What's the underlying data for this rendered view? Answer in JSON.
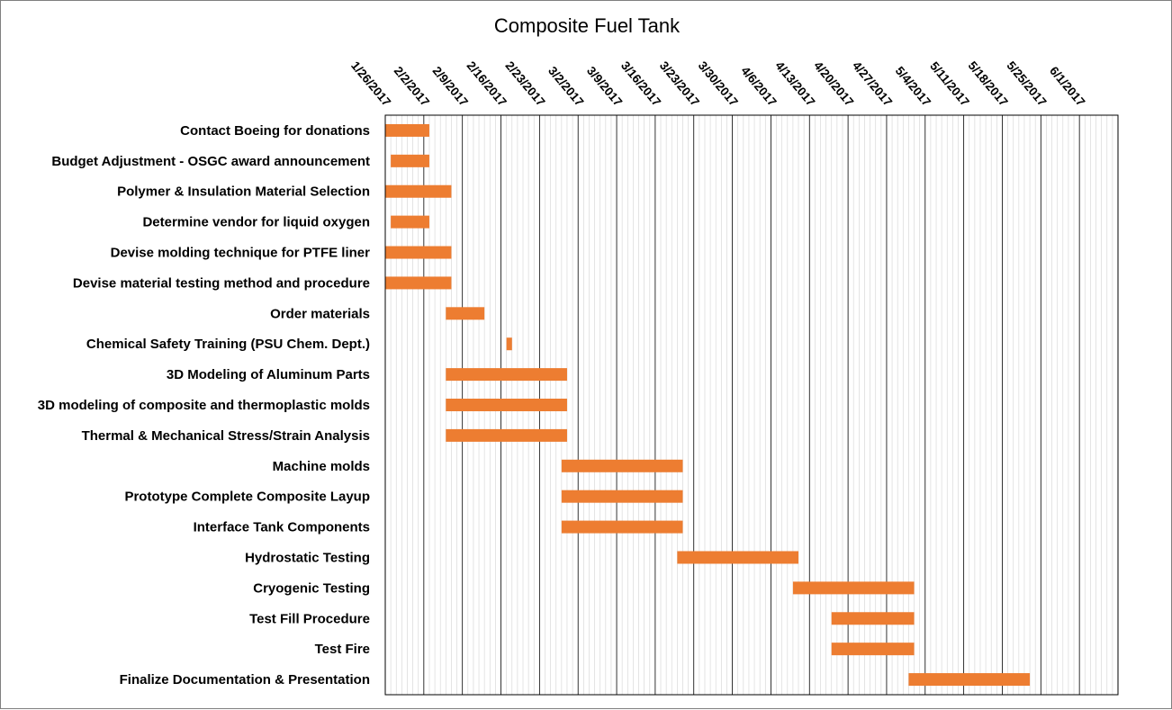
{
  "chart_data": {
    "type": "gantt",
    "title": "Composite Fuel Tank",
    "x_axis": {
      "start": "1/26/2017",
      "end": "6/8/2017",
      "major_ticks": [
        "1/26/2017",
        "2/2/2017",
        "2/9/2017",
        "2/16/2017",
        "2/23/2017",
        "3/2/2017",
        "3/9/2017",
        "3/16/2017",
        "3/23/2017",
        "3/30/2017",
        "4/6/2017",
        "4/13/2017",
        "4/20/2017",
        "4/27/2017",
        "5/4/2017",
        "5/11/2017",
        "5/18/2017",
        "5/25/2017",
        "6/1/2017"
      ],
      "tick_position": "top",
      "grid": "major and daily minor"
    },
    "bar_color": "#ED7D31",
    "tasks": [
      {
        "name": "Contact Boeing for donations",
        "start": "1/26/2017",
        "end": "2/3/2017"
      },
      {
        "name": "Budget Adjustment - OSGC award announcement",
        "start": "1/27/2017",
        "end": "2/3/2017"
      },
      {
        "name": "Polymer & Insulation Material Selection",
        "start": "1/26/2017",
        "end": "2/7/2017"
      },
      {
        "name": "Determine vendor for liquid oxygen",
        "start": "1/27/2017",
        "end": "2/3/2017"
      },
      {
        "name": "Devise molding technique for PTFE liner",
        "start": "1/26/2017",
        "end": "2/7/2017"
      },
      {
        "name": "Devise material testing method and procedure",
        "start": "1/26/2017",
        "end": "2/7/2017"
      },
      {
        "name": "Order materials",
        "start": "2/6/2017",
        "end": "2/13/2017"
      },
      {
        "name": "Chemical Safety Training (PSU Chem. Dept.)",
        "start": "2/17/2017",
        "end": "2/18/2017"
      },
      {
        "name": "3D Modeling of Aluminum Parts",
        "start": "2/6/2017",
        "end": "2/28/2017"
      },
      {
        "name": "3D modeling of composite and thermoplastic molds",
        "start": "2/6/2017",
        "end": "2/28/2017"
      },
      {
        "name": "Thermal & Mechanical Stress/Strain Analysis",
        "start": "2/6/2017",
        "end": "2/28/2017"
      },
      {
        "name": "Machine molds",
        "start": "2/27/2017",
        "end": "3/21/2017"
      },
      {
        "name": "Prototype Complete Composite Layup",
        "start": "2/27/2017",
        "end": "3/21/2017"
      },
      {
        "name": "Interface Tank Components",
        "start": "2/27/2017",
        "end": "3/21/2017"
      },
      {
        "name": "Hydrostatic Testing",
        "start": "3/20/2017",
        "end": "4/11/2017"
      },
      {
        "name": "Cryogenic Testing",
        "start": "4/10/2017",
        "end": "5/2/2017"
      },
      {
        "name": "Test Fill Procedure",
        "start": "4/17/2017",
        "end": "5/2/2017"
      },
      {
        "name": "Test Fire",
        "start": "4/17/2017",
        "end": "5/2/2017"
      },
      {
        "name": "Finalize Documentation & Presentation",
        "start": "5/1/2017",
        "end": "5/23/2017"
      }
    ]
  }
}
